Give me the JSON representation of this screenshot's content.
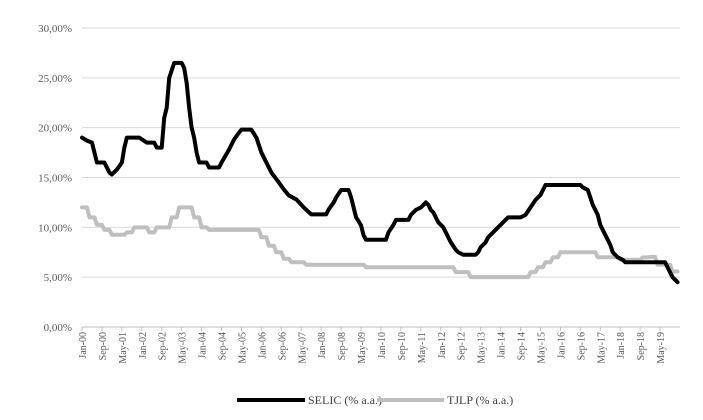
{
  "chart_data": {
    "type": "line",
    "title": "",
    "xlabel": "",
    "ylabel": "",
    "ylim": [
      0,
      30
    ],
    "y_ticks": [
      "0,00%",
      "5,00%",
      "10,00%",
      "15,00%",
      "20,00%",
      "25,00%",
      "30,00%"
    ],
    "x_ticks": [
      "Jan-00",
      "Sep-00",
      "May-01",
      "Jan-02",
      "Sep-02",
      "May-03",
      "Jan-04",
      "Sep-04",
      "May-05",
      "Jan-06",
      "Sep-06",
      "May-07",
      "Jan-08",
      "Sep-08",
      "May-09",
      "Jan-10",
      "Sep-10",
      "May-11",
      "Jan-12",
      "Sep-12",
      "May-13",
      "Jan-14",
      "Sep-14",
      "May-15",
      "Jan-16",
      "Sep-16",
      "May-17",
      "Jan-18",
      "Sep-18",
      "May-19"
    ],
    "x_range": [
      "2000-01",
      "2019-12"
    ],
    "grid": true,
    "legend_position": "bottom",
    "series": [
      {
        "name": "SELIC (% a.a.)",
        "color": "#000000",
        "points": [
          [
            "2000-01",
            19.0
          ],
          [
            "2000-03",
            18.7
          ],
          [
            "2000-05",
            18.5
          ],
          [
            "2000-06",
            17.5
          ],
          [
            "2000-07",
            16.5
          ],
          [
            "2000-10",
            16.5
          ],
          [
            "2000-12",
            15.5
          ],
          [
            "2001-01",
            15.3
          ],
          [
            "2001-03",
            15.8
          ],
          [
            "2001-05",
            16.5
          ],
          [
            "2001-06",
            18.0
          ],
          [
            "2001-07",
            19.0
          ],
          [
            "2001-12",
            19.0
          ],
          [
            "2002-03",
            18.5
          ],
          [
            "2002-06",
            18.5
          ],
          [
            "2002-07",
            18.0
          ],
          [
            "2002-09",
            18.0
          ],
          [
            "2002-10",
            21.0
          ],
          [
            "2002-11",
            22.0
          ],
          [
            "2002-12",
            25.0
          ],
          [
            "2003-02",
            26.5
          ],
          [
            "2003-05",
            26.5
          ],
          [
            "2003-06",
            26.0
          ],
          [
            "2003-07",
            24.5
          ],
          [
            "2003-08",
            22.0
          ],
          [
            "2003-09",
            20.0
          ],
          [
            "2003-10",
            19.0
          ],
          [
            "2003-11",
            17.5
          ],
          [
            "2003-12",
            16.5
          ],
          [
            "2004-03",
            16.5
          ],
          [
            "2004-04",
            16.0
          ],
          [
            "2004-08",
            16.0
          ],
          [
            "2004-09",
            16.5
          ],
          [
            "2004-12",
            17.8
          ],
          [
            "2005-02",
            18.8
          ],
          [
            "2005-04",
            19.5
          ],
          [
            "2005-05",
            19.8
          ],
          [
            "2005-09",
            19.8
          ],
          [
            "2005-11",
            19.0
          ],
          [
            "2006-01",
            17.5
          ],
          [
            "2006-03",
            16.5
          ],
          [
            "2006-05",
            15.5
          ],
          [
            "2006-08",
            14.5
          ],
          [
            "2006-10",
            13.8
          ],
          [
            "2006-12",
            13.2
          ],
          [
            "2007-03",
            12.8
          ],
          [
            "2007-06",
            12.0
          ],
          [
            "2007-09",
            11.3
          ],
          [
            "2007-12",
            11.3
          ],
          [
            "2008-03",
            11.3
          ],
          [
            "2008-04",
            11.8
          ],
          [
            "2008-06",
            12.5
          ],
          [
            "2008-07",
            13.0
          ],
          [
            "2008-09",
            13.75
          ],
          [
            "2008-12",
            13.75
          ],
          [
            "2009-01",
            13.0
          ],
          [
            "2009-02",
            12.0
          ],
          [
            "2009-03",
            11.0
          ],
          [
            "2009-05",
            10.2
          ],
          [
            "2009-06",
            9.2
          ],
          [
            "2009-07",
            8.75
          ],
          [
            "2010-03",
            8.75
          ],
          [
            "2010-04",
            9.5
          ],
          [
            "2010-06",
            10.25
          ],
          [
            "2010-07",
            10.75
          ],
          [
            "2010-12",
            10.75
          ],
          [
            "2011-01",
            11.25
          ],
          [
            "2011-03",
            11.75
          ],
          [
            "2011-05",
            12.0
          ],
          [
            "2011-06",
            12.25
          ],
          [
            "2011-07",
            12.5
          ],
          [
            "2011-08",
            12.25
          ],
          [
            "2011-09",
            11.75
          ],
          [
            "2011-10",
            11.5
          ],
          [
            "2011-11",
            11.0
          ],
          [
            "2011-12",
            10.5
          ],
          [
            "2012-02",
            10.0
          ],
          [
            "2012-03",
            9.5
          ],
          [
            "2012-05",
            8.5
          ],
          [
            "2012-07",
            7.75
          ],
          [
            "2012-08",
            7.5
          ],
          [
            "2012-10",
            7.25
          ],
          [
            "2013-03",
            7.25
          ],
          [
            "2013-04",
            7.5
          ],
          [
            "2013-05",
            8.0
          ],
          [
            "2013-07",
            8.5
          ],
          [
            "2013-08",
            9.0
          ],
          [
            "2013-10",
            9.5
          ],
          [
            "2013-12",
            10.0
          ],
          [
            "2014-02",
            10.5
          ],
          [
            "2014-04",
            11.0
          ],
          [
            "2014-09",
            11.0
          ],
          [
            "2014-11",
            11.25
          ],
          [
            "2015-01",
            12.0
          ],
          [
            "2015-03",
            12.75
          ],
          [
            "2015-05",
            13.25
          ],
          [
            "2015-06",
            13.75
          ],
          [
            "2015-07",
            14.25
          ],
          [
            "2016-09",
            14.25
          ],
          [
            "2016-10",
            14.0
          ],
          [
            "2016-12",
            13.75
          ],
          [
            "2017-01",
            13.0
          ],
          [
            "2017-02",
            12.25
          ],
          [
            "2017-04",
            11.25
          ],
          [
            "2017-05",
            10.25
          ],
          [
            "2017-07",
            9.25
          ],
          [
            "2017-09",
            8.25
          ],
          [
            "2017-10",
            7.5
          ],
          [
            "2017-12",
            7.0
          ],
          [
            "2018-02",
            6.75
          ],
          [
            "2018-03",
            6.5
          ],
          [
            "2019-07",
            6.5
          ],
          [
            "2019-08",
            6.0
          ],
          [
            "2019-09",
            5.5
          ],
          [
            "2019-10",
            5.0
          ],
          [
            "2019-11",
            4.75
          ],
          [
            "2019-12",
            4.5
          ]
        ]
      },
      {
        "name": "TJLP (% a.a.)",
        "color": "#bfbfbf",
        "points": [
          [
            "2000-01",
            12.0
          ],
          [
            "2000-03",
            12.0
          ],
          [
            "2000-04",
            11.0
          ],
          [
            "2000-06",
            11.0
          ],
          [
            "2000-07",
            10.25
          ],
          [
            "2000-09",
            10.25
          ],
          [
            "2000-10",
            9.75
          ],
          [
            "2000-12",
            9.75
          ],
          [
            "2001-01",
            9.25
          ],
          [
            "2001-06",
            9.25
          ],
          [
            "2001-07",
            9.5
          ],
          [
            "2001-09",
            9.5
          ],
          [
            "2001-10",
            10.0
          ],
          [
            "2002-03",
            10.0
          ],
          [
            "2002-04",
            9.5
          ],
          [
            "2002-06",
            9.5
          ],
          [
            "2002-07",
            10.0
          ],
          [
            "2002-12",
            10.0
          ],
          [
            "2003-01",
            11.0
          ],
          [
            "2003-03",
            11.0
          ],
          [
            "2003-04",
            12.0
          ],
          [
            "2003-09",
            12.0
          ],
          [
            "2003-10",
            11.0
          ],
          [
            "2003-12",
            11.0
          ],
          [
            "2004-01",
            10.0
          ],
          [
            "2004-03",
            10.0
          ],
          [
            "2004-04",
            9.75
          ],
          [
            "2005-12",
            9.75
          ],
          [
            "2006-01",
            9.0
          ],
          [
            "2006-03",
            9.0
          ],
          [
            "2006-04",
            8.15
          ],
          [
            "2006-06",
            8.15
          ],
          [
            "2006-07",
            7.5
          ],
          [
            "2006-09",
            7.5
          ],
          [
            "2006-10",
            6.85
          ],
          [
            "2006-12",
            6.85
          ],
          [
            "2007-01",
            6.5
          ],
          [
            "2007-06",
            6.5
          ],
          [
            "2007-07",
            6.25
          ],
          [
            "2009-06",
            6.25
          ],
          [
            "2009-07",
            6.0
          ],
          [
            "2012-06",
            6.0
          ],
          [
            "2012-07",
            5.5
          ],
          [
            "2012-12",
            5.5
          ],
          [
            "2013-01",
            5.0
          ],
          [
            "2014-12",
            5.0
          ],
          [
            "2015-01",
            5.5
          ],
          [
            "2015-03",
            5.5
          ],
          [
            "2015-04",
            6.0
          ],
          [
            "2015-06",
            6.0
          ],
          [
            "2015-07",
            6.5
          ],
          [
            "2015-09",
            6.5
          ],
          [
            "2015-10",
            7.0
          ],
          [
            "2015-12",
            7.0
          ],
          [
            "2016-01",
            7.5
          ],
          [
            "2016-12",
            7.5
          ],
          [
            "2017-01",
            7.5
          ],
          [
            "2017-03",
            7.5
          ],
          [
            "2017-04",
            7.0
          ],
          [
            "2017-12",
            7.0
          ],
          [
            "2018-01",
            6.75
          ],
          [
            "2018-09",
            6.75
          ],
          [
            "2018-10",
            6.98
          ],
          [
            "2018-12",
            6.98
          ],
          [
            "2019-01",
            7.03
          ],
          [
            "2019-03",
            7.03
          ],
          [
            "2019-04",
            6.26
          ],
          [
            "2019-09",
            6.26
          ],
          [
            "2019-10",
            5.57
          ],
          [
            "2019-12",
            5.57
          ]
        ]
      }
    ]
  }
}
